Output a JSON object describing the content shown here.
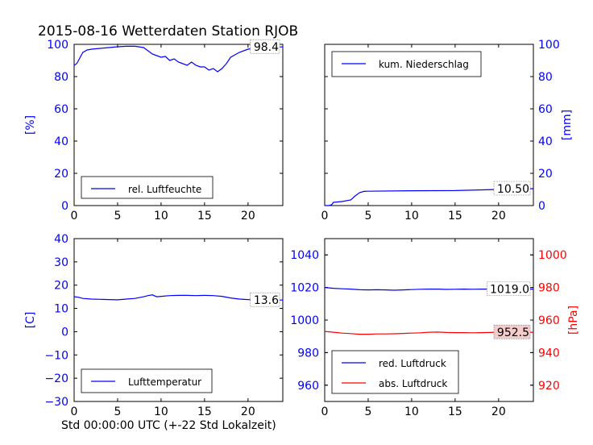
{
  "title": "2015-08-16 Wetterdaten Station RJOB",
  "xlabel": "Std 00:00:00 UTC (+-22 Std Lokalzeit)",
  "colors": {
    "blue": "#0000ff",
    "red": "#ff0000",
    "text": "#000000",
    "badge_red": "#f4cccc"
  },
  "chart_data": [
    {
      "type": "line",
      "ylabel": "[%]",
      "xlim": [
        0,
        24
      ],
      "ylim": [
        0,
        100
      ],
      "xticks": [
        0,
        5,
        10,
        15,
        20
      ],
      "yticks": [
        0,
        20,
        40,
        60,
        80,
        100
      ],
      "y_side": "left",
      "y_color": "blue",
      "legend_position": "lower-left",
      "value_label": "98.4",
      "series": [
        {
          "name": "rel. Luftfeuchte",
          "color": "blue",
          "x": [
            0,
            0.3,
            0.6,
            1,
            1.5,
            2,
            3,
            4,
            5,
            6,
            7,
            8,
            8.5,
            9,
            9.5,
            10,
            10.5,
            11,
            11.5,
            12,
            12.5,
            13,
            13.5,
            14,
            14.5,
            15,
            15.5,
            16,
            16.5,
            17,
            17.5,
            18,
            19,
            20,
            21,
            22,
            23,
            24
          ],
          "y": [
            87,
            88,
            91,
            95,
            96.5,
            97,
            97.5,
            98,
            98.5,
            98.8,
            98.8,
            98,
            96,
            94,
            93,
            92,
            92.5,
            90,
            91,
            89,
            88,
            87,
            89,
            87,
            86,
            86,
            84,
            85,
            83,
            85,
            88,
            92,
            95,
            97,
            98,
            98.4,
            98.4,
            98.4
          ]
        }
      ]
    },
    {
      "type": "line",
      "ylabel": "[mm]",
      "xlim": [
        0,
        24
      ],
      "ylim": [
        0,
        100
      ],
      "xticks": [
        0,
        5,
        10,
        15,
        20
      ],
      "yticks": [
        0,
        20,
        40,
        60,
        80,
        100
      ],
      "y_side": "right",
      "y_color": "blue",
      "legend_position": "upper-left",
      "value_label": "10.50",
      "series": [
        {
          "name": "kum. Niederschlag",
          "color": "blue",
          "x": [
            0,
            0.5,
            0.8,
            1,
            2,
            3,
            3.5,
            4,
            4.5,
            5,
            10,
            15,
            20,
            24
          ],
          "y": [
            0,
            0,
            0.5,
            2,
            2.5,
            3.5,
            6,
            8,
            8.8,
            8.9,
            9.2,
            9.3,
            10.0,
            10.5
          ]
        }
      ]
    },
    {
      "type": "line",
      "ylabel": "[C]",
      "xlim": [
        0,
        24
      ],
      "ylim": [
        -30,
        40
      ],
      "xticks": [
        0,
        5,
        10,
        15,
        20
      ],
      "yticks": [
        -30,
        -20,
        -10,
        0,
        10,
        20,
        30,
        40
      ],
      "y_side": "left",
      "y_color": "blue",
      "legend_position": "lower-left",
      "value_label": "13.6",
      "series": [
        {
          "name": "Lufttemperatur",
          "color": "blue",
          "x": [
            0,
            0.5,
            1,
            2,
            3,
            4,
            5,
            6,
            7,
            8,
            8.5,
            9,
            9.5,
            10,
            11,
            12,
            13,
            14,
            15,
            16,
            17,
            18,
            19,
            20,
            21,
            22,
            23,
            24
          ],
          "y": [
            15,
            14.8,
            14.3,
            14.0,
            13.9,
            13.8,
            13.7,
            14.0,
            14.3,
            15.0,
            15.5,
            15.8,
            15.0,
            15.2,
            15.5,
            15.6,
            15.6,
            15.5,
            15.6,
            15.5,
            15.2,
            14.5,
            14.0,
            13.8,
            13.7,
            13.6,
            13.6,
            13.6
          ]
        }
      ]
    },
    {
      "type": "line",
      "ylabel": "[hPa]",
      "xlim": [
        0,
        24
      ],
      "ylim": [
        950,
        1050
      ],
      "right_ylim": [
        910,
        1010
      ],
      "xticks": [
        0,
        5,
        10,
        15,
        20
      ],
      "yticks": [
        960,
        980,
        1000,
        1020,
        1040
      ],
      "right_yticks": [
        920,
        940,
        960,
        980,
        1000
      ],
      "y_side": "both",
      "y_color": "blue",
      "right_y_color": "red",
      "legend_position": "lower-left",
      "value_labels": [
        "1019.0",
        "952.5"
      ],
      "series": [
        {
          "name": "red. Luftdruck",
          "color": "blue",
          "axis": "left",
          "x": [
            0,
            1,
            2,
            3,
            4,
            5,
            6,
            7,
            8,
            9,
            10,
            11,
            12,
            13,
            14,
            15,
            16,
            17,
            18,
            19,
            20,
            21,
            22,
            23,
            24
          ],
          "y": [
            1020,
            1019.5,
            1019.2,
            1019.0,
            1018.6,
            1018.5,
            1018.6,
            1018.5,
            1018.3,
            1018.5,
            1018.7,
            1018.9,
            1019.0,
            1019.0,
            1018.8,
            1018.9,
            1019.0,
            1018.9,
            1019.0,
            1019.0,
            1019.0,
            1019.1,
            1019.0,
            1019.0,
            1019.0
          ]
        },
        {
          "name": "abs. Luftdruck",
          "color": "red",
          "axis": "right",
          "x": [
            0,
            1,
            2,
            3,
            4,
            5,
            6,
            7,
            8,
            9,
            10,
            11,
            12,
            13,
            14,
            15,
            16,
            17,
            18,
            19,
            20,
            21,
            22,
            23,
            24
          ],
          "y": [
            953.0,
            952.5,
            952.0,
            951.7,
            951.3,
            951.3,
            951.5,
            951.5,
            951.6,
            951.8,
            952.0,
            952.2,
            952.5,
            952.6,
            952.4,
            952.3,
            952.3,
            952.2,
            952.3,
            952.4,
            952.5,
            952.5,
            952.5,
            952.5,
            952.5
          ]
        }
      ]
    }
  ]
}
